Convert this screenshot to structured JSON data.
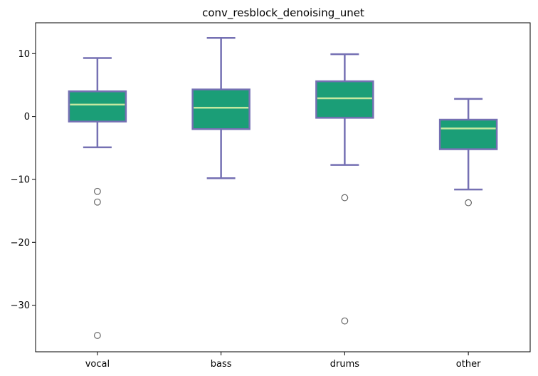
{
  "chart_data": {
    "type": "box",
    "title": "conv_resblock_denoising_unet",
    "xlabel": "",
    "ylabel": "",
    "ylim": [
      -37.4,
      14.9
    ],
    "yticks": [
      10,
      0,
      -10,
      -20,
      -30
    ],
    "ytick_labels": [
      "10",
      "0",
      "−10",
      "−20",
      "−30"
    ],
    "categories": [
      "vocal",
      "bass",
      "drums",
      "other"
    ],
    "boxes": [
      {
        "label": "vocal",
        "whisker_low": -4.9,
        "q1": -0.8,
        "median": 1.9,
        "q3": 4.0,
        "whisker_high": 9.3,
        "outliers": [
          -11.9,
          -13.6,
          -34.8
        ]
      },
      {
        "label": "bass",
        "whisker_low": -9.8,
        "q1": -2.0,
        "median": 1.4,
        "q3": 4.3,
        "whisker_high": 12.5,
        "outliers": []
      },
      {
        "label": "drums",
        "whisker_low": -7.7,
        "q1": -0.2,
        "median": 2.9,
        "q3": 5.6,
        "whisker_high": 9.9,
        "outliers": [
          -12.9,
          -32.5
        ]
      },
      {
        "label": "other",
        "whisker_low": -11.6,
        "q1": -5.2,
        "median": -1.9,
        "q3": -0.5,
        "whisker_high": 2.8,
        "outliers": [
          -13.7
        ]
      }
    ],
    "grid": false,
    "colors": {
      "box_fill": "#1b9e77",
      "box_edge": "#7570b3",
      "median": "#c5e8a0",
      "outlier_edge": "#666666"
    }
  }
}
